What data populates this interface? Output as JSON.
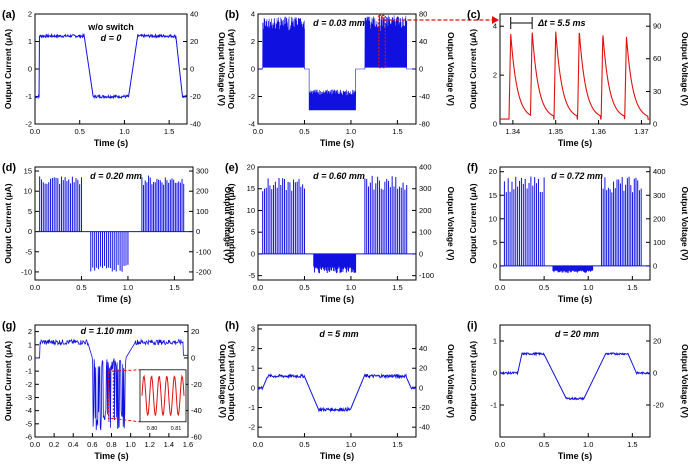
{
  "colors": {
    "blue": "#1010e0",
    "red": "#e01010",
    "axis": "#000000"
  },
  "chart_data": [
    {
      "id": "a",
      "panel_label": "(a)",
      "type": "line",
      "xlabel": "Time (s)",
      "ylabel_left": "Output Current (μA)",
      "ylabel_right": "Output Voltage (V)",
      "xlim": [
        0,
        1.7
      ],
      "ylim": [
        -2,
        2
      ],
      "x_ticks": [
        0.0,
        0.5,
        1.0,
        1.5
      ],
      "x_tick_labels": [
        "0.0",
        "0.5",
        "1.0",
        "1.5"
      ],
      "y_ticks": [
        -2,
        -1,
        0,
        1,
        2
      ],
      "y_tick_labels": [
        "-2",
        "-1",
        "0",
        "1",
        "2"
      ],
      "y2_tick_labels": [
        "-40",
        "-20",
        "0",
        "20",
        "40"
      ],
      "annotations": [
        "w/o switch",
        "d = 0"
      ],
      "series": [
        {
          "color": "blue",
          "style": "square",
          "high": 1.2,
          "low": -1.0,
          "noise": 0.05,
          "segments": [
            [
              0.0,
              0.05,
              "low"
            ],
            [
              0.05,
              0.55,
              "high"
            ],
            [
              0.65,
              1.05,
              "low"
            ],
            [
              1.15,
              1.58,
              "high"
            ],
            [
              1.65,
              1.7,
              "low"
            ]
          ]
        }
      ]
    },
    {
      "id": "b",
      "panel_label": "(b)",
      "type": "line",
      "xlabel": "Time (s)",
      "ylabel_left": "Output Current (μA)",
      "ylabel_right": "Output Voltage (V)",
      "xlim": [
        0,
        1.7
      ],
      "ylim": [
        -4,
        4
      ],
      "x_ticks": [
        0.0,
        0.5,
        1.0,
        1.5
      ],
      "x_tick_labels": [
        "0.0",
        "0.5",
        "1.0",
        "1.5"
      ],
      "y_ticks": [
        -4,
        -2,
        0,
        2,
        4
      ],
      "y_tick_labels": [
        "-4",
        "-2",
        "0",
        "2",
        "4"
      ],
      "y2_tick_labels": [
        "-80",
        "-40",
        "0",
        "40",
        "80"
      ],
      "annotations": [
        "d = 0.03 mm"
      ],
      "series": [
        {
          "color": "blue",
          "style": "dense",
          "bands": [
            [
              0.05,
              0.5,
              0.1,
              3.8
            ],
            [
              0.55,
              1.05,
              -3.0,
              -1.5
            ],
            [
              1.15,
              1.6,
              0.1,
              3.9
            ]
          ]
        }
      ]
    },
    {
      "id": "c",
      "panel_label": "(c)",
      "type": "line",
      "xlabel": "Time (s)",
      "ylabel_left": "Output Current (μA)",
      "ylabel_right": "Output Voltage (V)",
      "xlim": [
        1.337,
        1.372
      ],
      "ylim": [
        0,
        4.5
      ],
      "x_ticks": [
        1.34,
        1.35,
        1.36,
        1.37
      ],
      "x_tick_labels": [
        "1.34",
        "1.35",
        "1.36",
        "1.37"
      ],
      "y_ticks": [
        0,
        2,
        4
      ],
      "y_tick_labels": [
        "0",
        "2",
        "4"
      ],
      "y2_tick_labels": [
        "0",
        "30",
        "60",
        "90"
      ],
      "y2_ticks": [
        0,
        1.33,
        2.67,
        4.0
      ],
      "annotations": [
        "Δt = 5.5 ms"
      ],
      "series": [
        {
          "color": "red",
          "style": "decay",
          "peaks": [
            1.3395,
            1.3445,
            1.35,
            1.3555,
            1.361,
            1.3665
          ],
          "peak_values": [
            3.7,
            3.8,
            3.8,
            3.8,
            3.7,
            3.6
          ],
          "baseline": 0.2,
          "tau": 0.0015
        }
      ]
    },
    {
      "id": "d",
      "panel_label": "(d)",
      "type": "line",
      "xlabel": "Time (s)",
      "ylabel_left": "Output Current (μA)",
      "ylabel_right": "Output Voltage (V)",
      "xlim": [
        0,
        1.7
      ],
      "ylim": [
        -12,
        16
      ],
      "x_ticks": [
        0.0,
        0.5,
        1.0,
        1.5
      ],
      "x_tick_labels": [
        "0.0",
        "0.5",
        "1.0",
        "1.5"
      ],
      "y_ticks": [
        -10,
        -5,
        0,
        5,
        10,
        15
      ],
      "y_tick_labels": [
        "-10",
        "-5",
        "0",
        "5",
        "10",
        "15"
      ],
      "y2_tick_labels": [
        "-200",
        "-100",
        "0",
        "100",
        "200",
        "300"
      ],
      "annotations": [
        "d = 0.20 mm"
      ],
      "series": [
        {
          "color": "blue",
          "style": "spikes",
          "groups": [
            [
              0.05,
              0.5,
              14,
              24,
              "up"
            ],
            [
              0.6,
              1.0,
              -10,
              20,
              "down"
            ],
            [
              1.15,
              1.6,
              14,
              26,
              "up"
            ]
          ]
        }
      ]
    },
    {
      "id": "e",
      "panel_label": "(e)",
      "type": "line",
      "xlabel": "Time (s)",
      "ylabel_left": "Output Current (μA)",
      "ylabel_right": "Output Voltage (V)",
      "xlim": [
        0,
        1.7
      ],
      "ylim": [
        -6,
        20
      ],
      "x_ticks": [
        0.0,
        0.5,
        1.0,
        1.5
      ],
      "x_tick_labels": [
        "0.0",
        "0.5",
        "1.0",
        "1.5"
      ],
      "y_ticks": [
        -5,
        0,
        5,
        10,
        15,
        20
      ],
      "y_tick_labels": [
        "-5",
        "0",
        "5",
        "10",
        "15",
        "20"
      ],
      "y2_tick_labels": [
        "-100",
        "0",
        "100",
        "200",
        "300",
        "400"
      ],
      "annotations": [
        "d = 0.60 mm"
      ],
      "series": [
        {
          "color": "blue",
          "style": "spikes",
          "groups": [
            [
              0.05,
              0.5,
              17.5,
              24,
              "up"
            ],
            [
              0.6,
              1.05,
              -4.5,
              60,
              "band"
            ],
            [
              1.15,
              1.6,
              18,
              24,
              "up"
            ]
          ]
        }
      ]
    },
    {
      "id": "f",
      "panel_label": "(f)",
      "type": "line",
      "xlabel": "Time (s)",
      "ylabel_left": "Output Current (μA)",
      "ylabel_right": "Output Voltage (V)",
      "xlim": [
        0,
        1.7
      ],
      "ylim": [
        -3,
        21
      ],
      "x_ticks": [
        0.0,
        0.5,
        1.0,
        1.5
      ],
      "x_tick_labels": [
        "0.0",
        "0.5",
        "1.0",
        "1.5"
      ],
      "y_ticks": [
        0,
        5,
        10,
        15,
        20
      ],
      "y_tick_labels": [
        "0",
        "5",
        "10",
        "15",
        "20"
      ],
      "y2_tick_labels": [
        "0",
        "100",
        "200",
        "300",
        "400"
      ],
      "annotations": [
        "d = 0.72 mm"
      ],
      "series": [
        {
          "color": "blue",
          "style": "spikes",
          "groups": [
            [
              0.05,
              0.5,
              19,
              22,
              "up"
            ],
            [
              0.6,
              1.05,
              -1.5,
              40,
              "band"
            ],
            [
              1.15,
              1.6,
              19,
              24,
              "up"
            ]
          ]
        }
      ]
    },
    {
      "id": "g",
      "panel_label": "(g)",
      "type": "line",
      "xlabel": "Time (s)",
      "ylabel_left": "Output Current (μA)",
      "ylabel_right": "Output Voltage (V)",
      "xlim": [
        0,
        1.6
      ],
      "ylim": [
        -6,
        2.5
      ],
      "x_ticks": [
        0.0,
        0.2,
        0.4,
        0.6,
        0.8,
        1.0,
        1.2,
        1.4,
        1.6
      ],
      "x_tick_labels": [
        "0.0",
        "0.2",
        "0.4",
        "0.6",
        "0.8",
        "1.0",
        "1.2",
        "1.4",
        "1.6"
      ],
      "y_ticks": [
        -6,
        -5,
        -4,
        -3,
        -2,
        -1,
        0,
        1,
        2
      ],
      "y_tick_labels": [
        "-6",
        "-5",
        "-4",
        "-3",
        "-2",
        "-1",
        "0",
        "1",
        "2"
      ],
      "y2_tick_labels": [
        "-60",
        "-40",
        "-20",
        "0",
        "20"
      ],
      "y2_ticks": [
        -6,
        -4,
        -2,
        0,
        2
      ],
      "annotations": [
        "d = 1.10 mm"
      ],
      "inset": {
        "x_tick_labels": [
          "0.80",
          "0.81"
        ],
        "color": "red"
      },
      "series": [
        {
          "color": "blue",
          "style": "square_band",
          "high": 1.2,
          "high_noise": 0.2,
          "band": [
            0.6,
            0.95,
            -5.5,
            0.0
          ]
        }
      ]
    },
    {
      "id": "h",
      "panel_label": "(h)",
      "type": "line",
      "xlabel": "Time (s)",
      "ylabel_left": "Output Current (μA)",
      "ylabel_right": "Output Voltage (V)",
      "xlim": [
        0,
        1.7
      ],
      "ylim": [
        -2.5,
        3.2
      ],
      "x_ticks": [
        0.0,
        0.5,
        1.0,
        1.5
      ],
      "x_tick_labels": [
        "0.0",
        "0.5",
        "1.0",
        "1.5"
      ],
      "y_ticks": [
        -2,
        -1,
        0,
        1,
        2,
        3
      ],
      "y_tick_labels": [
        "-2",
        "-1",
        "0",
        "1",
        "2",
        "3"
      ],
      "y2_tick_labels": [
        "-40",
        "-20",
        "0",
        "20",
        "40"
      ],
      "y2_ticks": [
        -2,
        -1,
        0,
        1,
        2
      ],
      "annotations": [
        "d = 5 mm"
      ],
      "series": [
        {
          "color": "blue",
          "style": "square",
          "high": 0.6,
          "low": -1.1,
          "noise": 0.08,
          "segments": [
            [
              0.0,
              0.05,
              "zero"
            ],
            [
              0.1,
              0.5,
              "high"
            ],
            [
              0.65,
              1.0,
              "low"
            ],
            [
              1.15,
              1.6,
              "high"
            ],
            [
              1.65,
              1.7,
              "zero"
            ]
          ]
        }
      ]
    },
    {
      "id": "i",
      "panel_label": "(i)",
      "type": "line",
      "xlabel": "Time (s)",
      "ylabel_left": "Output Current (μA)",
      "ylabel_right": "Output Voltage (V)",
      "xlim": [
        0,
        1.7
      ],
      "ylim": [
        -2,
        1.5
      ],
      "x_ticks": [
        0.0,
        0.5,
        1.0,
        1.5
      ],
      "x_tick_labels": [
        "0.0",
        "0.5",
        "1.0",
        "1.5"
      ],
      "y_ticks": [
        -1,
        0,
        1
      ],
      "y_tick_labels": [
        "-1",
        "0",
        "1"
      ],
      "y2_tick_labels": [
        "-20",
        "0",
        "20"
      ],
      "y2_ticks": [
        -1,
        0,
        1
      ],
      "annotations": [
        "d = 20 mm"
      ],
      "series": [
        {
          "color": "blue",
          "style": "square",
          "high": 0.6,
          "low": -0.8,
          "noise": 0.03,
          "segments": [
            [
              0.0,
              0.2,
              "zero"
            ],
            [
              0.25,
              0.5,
              "high"
            ],
            [
              0.75,
              0.95,
              "low"
            ],
            [
              1.2,
              1.45,
              "high"
            ],
            [
              1.55,
              1.7,
              "zero"
            ]
          ]
        }
      ]
    }
  ]
}
